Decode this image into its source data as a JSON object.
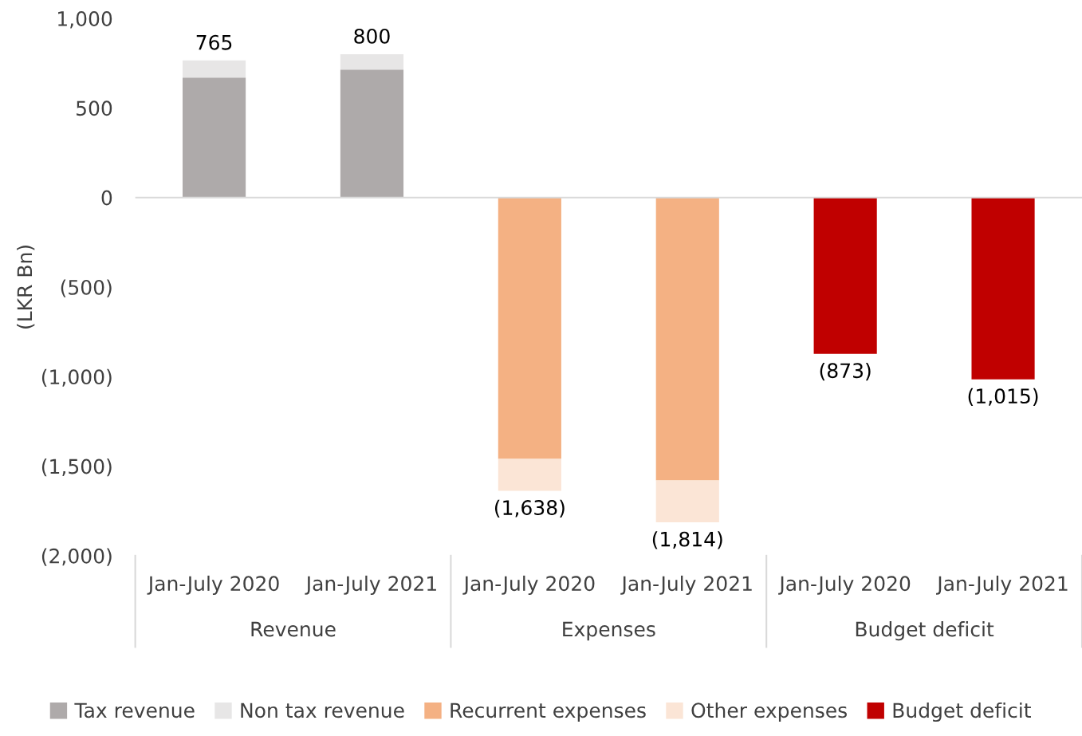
{
  "chart_data": {
    "type": "bar",
    "stacked": true,
    "ylabel": "(LKR Bn)",
    "categories": [
      "Jan-July 2020",
      "Jan-July 2021",
      "Jan-July 2020",
      "Jan-July 2021",
      "Jan-July 2020",
      "Jan-July 2021"
    ],
    "series": [
      {
        "name": "Tax revenue",
        "color": "#aeaaaa",
        "values": [
          670,
          714,
          null,
          null,
          null,
          null
        ]
      },
      {
        "name": "Non tax revenue",
        "color": "#e7e6e6",
        "values": [
          95,
          86,
          null,
          null,
          null,
          null
        ]
      },
      {
        "name": "Recurrent expenses",
        "color": "#f4b183",
        "values": [
          null,
          null,
          -1460,
          -1580,
          null,
          null
        ]
      },
      {
        "name": "Other expenses",
        "color": "#fbe5d6",
        "values": [
          null,
          null,
          -178,
          -234,
          null,
          null
        ]
      },
      {
        "name": "Budget deficit",
        "color": "#c00000",
        "values": [
          null,
          null,
          null,
          null,
          -873,
          -1015
        ]
      }
    ],
    "totals": [
      "765",
      "800",
      "(1,638)",
      "(1,814)",
      "(873)",
      "(1,015)"
    ],
    "annotations": [
      "Revenue",
      "Expenses",
      "Budget deficit"
    ],
    "ylim": [
      -2000,
      1000
    ],
    "yticks": [
      {
        "value": -2000,
        "label": "(2,000)"
      },
      {
        "value": -1500,
        "label": "(1,500)"
      },
      {
        "value": -1000,
        "label": "(1,000)"
      },
      {
        "value": -500,
        "label": "(500)"
      },
      0,
      500,
      {
        "value": 1000,
        "label": "1,000"
      }
    ],
    "ref_lines": [
      {
        "axis": "y",
        "value": 0,
        "color": "#d9d9d9"
      }
    ],
    "grid": false,
    "legend": "bottom"
  }
}
